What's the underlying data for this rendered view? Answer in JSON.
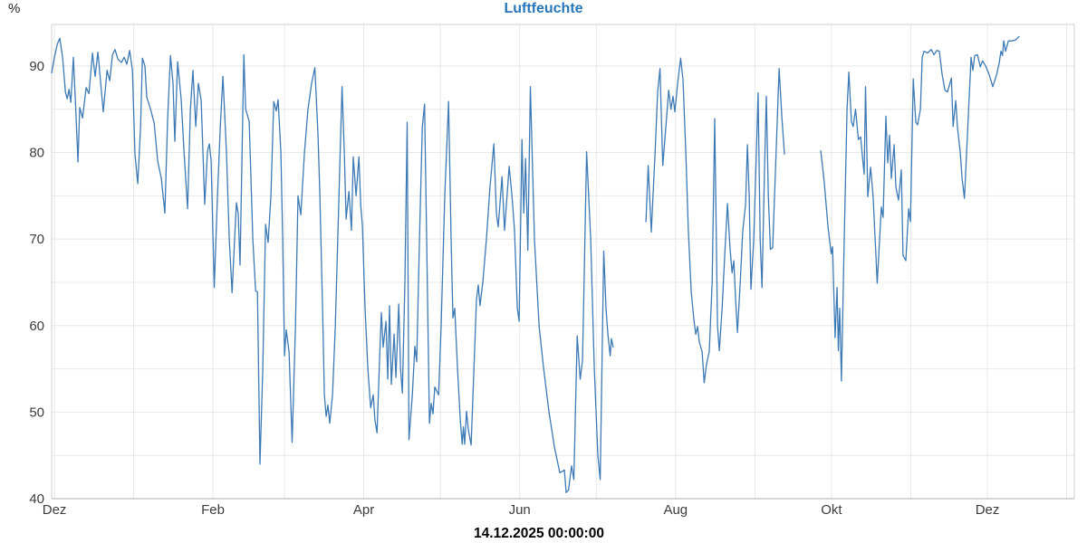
{
  "chart": {
    "title": "Luftfeuchte",
    "y_unit": "%",
    "timestamp_label": "14.12.2025 00:00:00",
    "colors": {
      "line": "#3d7ab5",
      "title": "#2676b8",
      "grid": "#e8e8e8",
      "frame": "#d0d0d0",
      "bottom_axis": "#aeaeae",
      "axis_text": "#3c3c3c",
      "timestamp_text": "#000000",
      "background": "#ffffff"
    }
  },
  "chart_data": {
    "type": "line",
    "title": "Luftfeuchte",
    "series_name": "Luftfeuchte",
    "unit": "%",
    "xlabel": "",
    "ylabel": "%",
    "legend": "none",
    "grid": "on",
    "x_axis": {
      "kind": "time",
      "day0_date": "01.12.2024",
      "last_point_date": "14.12.2025 00:00:00",
      "xlim_days": [
        -1.1,
        399
      ],
      "tick_labels": [
        {
          "day": 0,
          "label": "Dez"
        },
        {
          "day": 62,
          "label": "Feb"
        },
        {
          "day": 121,
          "label": "Apr"
        },
        {
          "day": 182,
          "label": "Jun"
        },
        {
          "day": 243,
          "label": "Aug"
        },
        {
          "day": 304,
          "label": "Okt"
        },
        {
          "day": 365,
          "label": "Dez"
        }
      ],
      "month_gridlines_days": [
        0,
        31,
        62,
        90,
        121,
        151,
        182,
        212,
        243,
        274,
        304,
        335,
        365,
        396
      ]
    },
    "y_axis": {
      "min": 40,
      "max": 94.8,
      "tick_labels": [
        40,
        50,
        60,
        70,
        80,
        90
      ],
      "gridlines": [
        45,
        50,
        55,
        60,
        65,
        70,
        75,
        80,
        85,
        90
      ]
    },
    "gaps_note": "null entries = missing data (mid-July and late-September gaps)",
    "points": [
      [
        -1.1,
        89.2
      ],
      [
        0,
        91
      ],
      [
        1.1,
        92.5
      ],
      [
        2.1,
        93.2
      ],
      [
        3.2,
        91
      ],
      [
        4.3,
        87
      ],
      [
        5,
        86.2
      ],
      [
        5.7,
        87.3
      ],
      [
        6.4,
        85.8
      ],
      [
        7.4,
        91
      ],
      [
        8.2,
        86
      ],
      [
        9.2,
        78.9
      ],
      [
        9.9,
        85.2
      ],
      [
        11,
        84
      ],
      [
        12.4,
        87.5
      ],
      [
        13.5,
        86.8
      ],
      [
        14.9,
        91.5
      ],
      [
        15.9,
        88.8
      ],
      [
        17,
        91.6
      ],
      [
        18.1,
        88
      ],
      [
        19.1,
        84.7
      ],
      [
        20.6,
        89.5
      ],
      [
        21.6,
        88.3
      ],
      [
        22.7,
        91.3
      ],
      [
        23.7,
        91.9
      ],
      [
        24.8,
        90.8
      ],
      [
        26.2,
        90.4
      ],
      [
        27.3,
        91
      ],
      [
        28.3,
        90.2
      ],
      [
        29.4,
        91.8
      ],
      [
        30.5,
        89.5
      ],
      [
        31.5,
        79.8
      ],
      [
        32.6,
        76.4
      ],
      [
        33.7,
        83
      ],
      [
        34.4,
        90.9
      ],
      [
        35.4,
        90
      ],
      [
        36.1,
        86.4
      ],
      [
        37.6,
        85
      ],
      [
        39,
        83.4
      ],
      [
        40.4,
        79
      ],
      [
        41.8,
        77
      ],
      [
        43.2,
        73
      ],
      [
        44.3,
        84
      ],
      [
        45.4,
        91.2
      ],
      [
        46.4,
        88
      ],
      [
        47.1,
        81.3
      ],
      [
        48.2,
        90.5
      ],
      [
        49.6,
        86
      ],
      [
        50.7,
        80
      ],
      [
        52.1,
        73.5
      ],
      [
        53.2,
        85
      ],
      [
        54.2,
        89.5
      ],
      [
        55.3,
        83
      ],
      [
        56.3,
        88
      ],
      [
        57.4,
        86
      ],
      [
        58.8,
        74
      ],
      [
        59.9,
        80.2
      ],
      [
        60.6,
        81
      ],
      [
        61.3,
        79
      ],
      [
        62.5,
        64.4
      ],
      [
        63.8,
        75
      ],
      [
        64.9,
        83
      ],
      [
        65.9,
        88.8
      ],
      [
        67.3,
        80
      ],
      [
        68.4,
        70
      ],
      [
        69.5,
        63.8
      ],
      [
        70.5,
        70
      ],
      [
        71.2,
        74.2
      ],
      [
        71.9,
        72.9
      ],
      [
        72.6,
        67
      ],
      [
        74.1,
        91.3
      ],
      [
        74.8,
        85
      ],
      [
        76.2,
        83.6
      ],
      [
        77.6,
        70
      ],
      [
        78.7,
        64
      ],
      [
        79.4,
        63.9
      ],
      [
        80.4,
        44
      ],
      [
        81.5,
        55
      ],
      [
        82.6,
        71.7
      ],
      [
        83.6,
        69.6
      ],
      [
        84.7,
        75
      ],
      [
        85.8,
        85.9
      ],
      [
        86.8,
        84.8
      ],
      [
        87.5,
        86.1
      ],
      [
        88.6,
        80
      ],
      [
        89.3,
        70
      ],
      [
        90,
        56.5
      ],
      [
        90.7,
        59.5
      ],
      [
        91.8,
        57
      ],
      [
        93,
        46.5
      ],
      [
        94.3,
        60
      ],
      [
        95.3,
        75
      ],
      [
        96.4,
        72.8
      ],
      [
        97.8,
        80
      ],
      [
        99.2,
        85
      ],
      [
        100.6,
        88
      ],
      [
        101.9,
        89.8
      ],
      [
        103.1,
        82.2
      ],
      [
        103.8,
        75.5
      ],
      [
        104.9,
        62
      ],
      [
        105.6,
        52
      ],
      [
        106.3,
        49.5
      ],
      [
        107,
        50.8
      ],
      [
        107.7,
        48.7
      ],
      [
        108.8,
        52
      ],
      [
        109.9,
        60
      ],
      [
        111.3,
        75
      ],
      [
        112.5,
        87.6
      ],
      [
        113.4,
        80
      ],
      [
        114.1,
        72.3
      ],
      [
        115.2,
        75.5
      ],
      [
        116.2,
        71
      ],
      [
        116.9,
        79.5
      ],
      [
        118,
        75
      ],
      [
        119.1,
        79.5
      ],
      [
        119.8,
        74
      ],
      [
        120.5,
        71.5
      ],
      [
        121.5,
        62
      ],
      [
        122.6,
        55
      ],
      [
        123.7,
        50.5
      ],
      [
        124.7,
        52
      ],
      [
        125.4,
        49
      ],
      [
        126.2,
        47.6
      ],
      [
        127.2,
        56
      ],
      [
        127.9,
        61.5
      ],
      [
        128.6,
        57.5
      ],
      [
        129.7,
        60.5
      ],
      [
        130.4,
        53.8
      ],
      [
        131.1,
        62.3
      ],
      [
        131.8,
        53.2
      ],
      [
        132.9,
        59
      ],
      [
        133.6,
        54
      ],
      [
        134.7,
        62.5
      ],
      [
        135.4,
        55
      ],
      [
        136.1,
        52.2
      ],
      [
        137.1,
        65
      ],
      [
        138,
        83.5
      ],
      [
        138.7,
        46.8
      ],
      [
        140,
        52
      ],
      [
        141,
        57.6
      ],
      [
        141.7,
        55.8
      ],
      [
        142.8,
        70
      ],
      [
        143.9,
        82.9
      ],
      [
        144.8,
        85.6
      ],
      [
        145.6,
        70
      ],
      [
        146.7,
        48.7
      ],
      [
        147.4,
        51
      ],
      [
        148.1,
        49.8
      ],
      [
        148.8,
        52.9
      ],
      [
        150.3,
        52
      ],
      [
        151.3,
        60
      ],
      [
        152.7,
        75
      ],
      [
        154.2,
        85.9
      ],
      [
        155.2,
        70
      ],
      [
        155.9,
        60.9
      ],
      [
        156.6,
        62
      ],
      [
        157.7,
        55
      ],
      [
        158.8,
        49
      ],
      [
        159.5,
        46.3
      ],
      [
        160,
        48.3
      ],
      [
        160.5,
        46.3
      ],
      [
        161.2,
        50.1
      ],
      [
        161.9,
        48
      ],
      [
        163,
        46.2
      ],
      [
        164.1,
        55
      ],
      [
        165.1,
        63
      ],
      [
        165.8,
        64.7
      ],
      [
        166.5,
        62.3
      ],
      [
        167.6,
        65
      ],
      [
        169,
        70
      ],
      [
        170.4,
        76
      ],
      [
        171.9,
        81
      ],
      [
        172.9,
        73
      ],
      [
        173.6,
        71.4
      ],
      [
        175.1,
        77.2
      ],
      [
        176.1,
        71
      ],
      [
        177.9,
        78.4
      ],
      [
        179,
        75
      ],
      [
        180,
        71
      ],
      [
        181.1,
        62
      ],
      [
        181.8,
        60.5
      ],
      [
        182.9,
        81.5
      ],
      [
        183.6,
        73
      ],
      [
        184.3,
        79.3
      ],
      [
        185.2,
        68.7
      ],
      [
        186.2,
        87.6
      ],
      [
        187.8,
        70
      ],
      [
        189.6,
        60
      ],
      [
        191.4,
        55
      ],
      [
        193.5,
        50
      ],
      [
        195.6,
        46
      ],
      [
        197.7,
        43
      ],
      [
        199.5,
        43.3
      ],
      [
        200.2,
        40.7
      ],
      [
        201.1,
        41
      ],
      [
        202.3,
        43.8
      ],
      [
        203.2,
        42.2
      ],
      [
        204.5,
        58.8
      ],
      [
        205.7,
        53.8
      ],
      [
        206.6,
        56
      ],
      [
        208.2,
        80.1
      ],
      [
        209.8,
        70
      ],
      [
        211.2,
        55
      ],
      [
        212.6,
        45
      ],
      [
        213.5,
        42.2
      ],
      [
        214.9,
        68.6
      ],
      [
        215.8,
        62
      ],
      [
        216.5,
        59.1
      ],
      [
        217.4,
        56.5
      ],
      [
        217.9,
        58.5
      ],
      [
        218.6,
        57.5
      ],
      null,
      [
        231.4,
        72
      ],
      [
        232.3,
        78.5
      ],
      [
        233.5,
        70.8
      ],
      [
        235,
        80
      ],
      [
        236,
        87
      ],
      [
        236.9,
        89.7
      ],
      [
        238,
        78.5
      ],
      [
        239.2,
        83
      ],
      [
        240.3,
        87.2
      ],
      [
        241.2,
        85
      ],
      [
        242,
        86.5
      ],
      [
        242.7,
        84.7
      ],
      [
        243.8,
        88
      ],
      [
        245,
        90.9
      ],
      [
        245.9,
        88.4
      ],
      [
        247,
        80
      ],
      [
        248,
        71
      ],
      [
        249.1,
        64
      ],
      [
        250.2,
        60.6
      ],
      [
        250.9,
        59
      ],
      [
        251.6,
        59.9
      ],
      [
        252.3,
        58.1
      ],
      [
        253.4,
        57
      ],
      [
        254.2,
        53.4
      ],
      [
        255.1,
        55.5
      ],
      [
        256.2,
        57
      ],
      [
        257.3,
        65
      ],
      [
        258.3,
        83.9
      ],
      [
        259.4,
        60
      ],
      [
        260.1,
        57.1
      ],
      [
        261.2,
        62
      ],
      [
        262.2,
        68
      ],
      [
        263.3,
        74.1
      ],
      [
        264.3,
        69
      ],
      [
        265.1,
        66.1
      ],
      [
        265.8,
        67.5
      ],
      [
        266.5,
        63
      ],
      [
        267.2,
        59.2
      ],
      [
        268.3,
        65
      ],
      [
        269.3,
        71
      ],
      [
        270.4,
        74
      ],
      [
        271.1,
        80.9
      ],
      [
        271.8,
        75
      ],
      [
        272.5,
        64.2
      ],
      [
        273.6,
        70
      ],
      [
        274.6,
        80
      ],
      [
        275.3,
        86.9
      ],
      [
        276.1,
        70
      ],
      [
        276.8,
        64.4
      ],
      [
        277.8,
        78
      ],
      [
        278.5,
        86.5
      ],
      [
        279.3,
        75
      ],
      [
        280.1,
        68.8
      ],
      [
        281,
        69
      ],
      [
        282.1,
        78
      ],
      [
        283.5,
        89.7
      ],
      [
        284.6,
        84
      ],
      [
        285.6,
        79.8
      ],
      null,
      [
        299.8,
        80.2
      ],
      [
        301.2,
        76.5
      ],
      [
        302.6,
        71.5
      ],
      [
        303.9,
        68.3
      ],
      [
        304.4,
        69.1
      ],
      [
        305.4,
        58.6
      ],
      [
        306.2,
        64.4
      ],
      [
        306.7,
        57.1
      ],
      [
        307.2,
        62
      ],
      [
        307.9,
        53.6
      ],
      [
        309,
        70
      ],
      [
        310.1,
        85
      ],
      [
        310.8,
        89.3
      ],
      [
        311.8,
        83.6
      ],
      [
        312.5,
        83
      ],
      [
        313.4,
        85
      ],
      [
        314.5,
        81.5
      ],
      [
        315.4,
        81.8
      ],
      [
        316.1,
        79.5
      ],
      [
        316.8,
        77.5
      ],
      [
        317.3,
        87.6
      ],
      [
        318.2,
        74.9
      ],
      [
        319.3,
        78.3
      ],
      [
        320.3,
        74.9
      ],
      [
        321.9,
        64.9
      ],
      [
        323.5,
        73.7
      ],
      [
        324.2,
        72.5
      ],
      [
        325.3,
        84.2
      ],
      [
        326,
        78.8
      ],
      [
        326.7,
        82
      ],
      [
        327.4,
        77
      ],
      [
        328.5,
        80.9
      ],
      [
        329.2,
        76
      ],
      [
        330.2,
        74.5
      ],
      [
        331.3,
        78
      ],
      [
        332,
        68.1
      ],
      [
        333.1,
        67.5
      ],
      [
        334.2,
        73.5
      ],
      [
        334.9,
        72
      ],
      [
        336,
        88.5
      ],
      [
        337,
        83.5
      ],
      [
        337.7,
        83.2
      ],
      [
        338.8,
        85
      ],
      [
        339.5,
        91
      ],
      [
        340.2,
        91.7
      ],
      [
        341.6,
        91.5
      ],
      [
        343,
        91.9
      ],
      [
        344.1,
        91.3
      ],
      [
        345.2,
        91.8
      ],
      [
        346.2,
        91.7
      ],
      [
        347.3,
        89
      ],
      [
        348.4,
        87.2
      ],
      [
        349.4,
        87
      ],
      [
        350.9,
        88.6
      ],
      [
        351.6,
        83
      ],
      [
        352.6,
        86
      ],
      [
        353.3,
        82.9
      ],
      [
        354.4,
        80
      ],
      [
        355.1,
        77
      ],
      [
        356,
        74.7
      ],
      [
        357.2,
        82
      ],
      [
        358.6,
        91
      ],
      [
        359.3,
        89.5
      ],
      [
        360,
        91.2
      ],
      [
        361.1,
        91.3
      ],
      [
        362.2,
        89.9
      ],
      [
        363.1,
        90.6
      ],
      [
        364.3,
        90
      ],
      [
        365.7,
        89
      ],
      [
        367.1,
        87.6
      ],
      [
        368.6,
        89
      ],
      [
        369.6,
        90.3
      ],
      [
        370.3,
        91.7
      ],
      [
        370.9,
        91.2
      ],
      [
        371.4,
        92.9
      ],
      [
        372.1,
        91.7
      ],
      [
        373.2,
        92.9
      ],
      [
        374.6,
        92.9
      ],
      [
        376,
        93
      ],
      [
        377.4,
        93.4
      ]
    ]
  }
}
